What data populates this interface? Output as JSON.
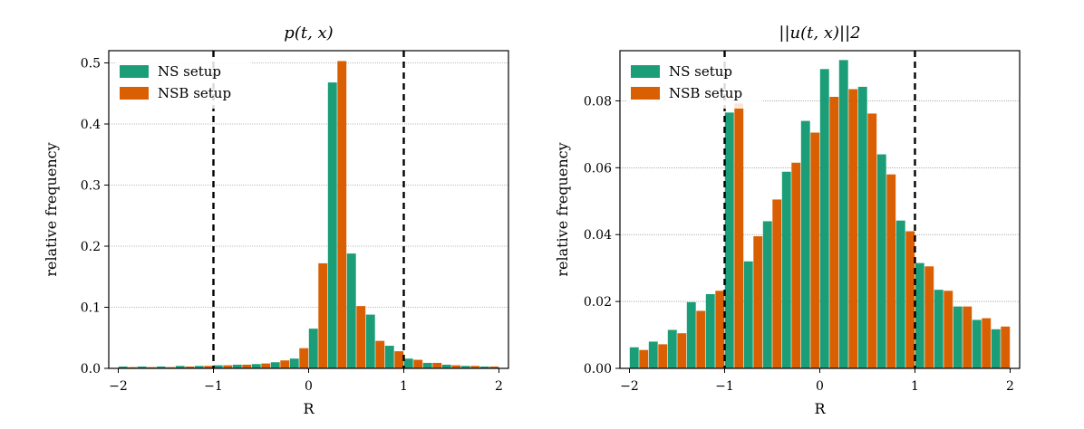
{
  "colors": {
    "ns": "#1b9e77",
    "nsb": "#d95f02",
    "grid": "#808080",
    "vline": "#000000"
  },
  "chart_data": [
    {
      "type": "bar",
      "title": "p(t, x)",
      "xlabel": "R",
      "ylabel": "relative frequency",
      "xlim": [
        -2.1,
        2.1
      ],
      "ylim": [
        0,
        0.52
      ],
      "xticks": [
        -2,
        -1,
        0,
        1,
        2
      ],
      "xtick_labels": [
        "−2",
        "−1",
        "0",
        "1",
        "2"
      ],
      "yticks": [
        0,
        0.1,
        0.2,
        0.3,
        0.4,
        0.5
      ],
      "ytick_labels": [
        "0.0",
        "0.1",
        "0.2",
        "0.3",
        "0.4",
        "0.5"
      ],
      "grid": "horizontal",
      "legend_position": "top-left",
      "bin_width": 0.2,
      "vlines": [
        -1,
        1
      ],
      "bin_centers": [
        -1.9,
        -1.7,
        -1.5,
        -1.3,
        -1.1,
        -0.9,
        -0.7,
        -0.5,
        -0.3,
        -0.1,
        0.1,
        0.3,
        0.5,
        0.7,
        0.9,
        1.1,
        1.3,
        1.5,
        1.7,
        1.9
      ],
      "series": [
        {
          "name": "NS setup",
          "color": "#1b9e77",
          "values": [
            0.003,
            0.003,
            0.003,
            0.004,
            0.004,
            0.005,
            0.006,
            0.007,
            0.01,
            0.016,
            0.065,
            0.468,
            0.188,
            0.088,
            0.037,
            0.016,
            0.009,
            0.006,
            0.004,
            0.003
          ]
        },
        {
          "name": "NSB setup",
          "color": "#d95f02",
          "values": [
            0.002,
            0.002,
            0.002,
            0.003,
            0.004,
            0.005,
            0.006,
            0.008,
            0.013,
            0.033,
            0.172,
            0.503,
            0.102,
            0.045,
            0.028,
            0.014,
            0.009,
            0.005,
            0.004,
            0.003
          ]
        }
      ]
    },
    {
      "type": "bar",
      "title": "||u(t, x)||2",
      "xlabel": "R",
      "ylabel": "relative frequency",
      "xlim": [
        -2.1,
        2.1
      ],
      "ylim": [
        0,
        0.095
      ],
      "xticks": [
        -2,
        -1,
        0,
        1,
        2
      ],
      "xtick_labels": [
        "−2",
        "−1",
        "0",
        "1",
        "2"
      ],
      "yticks": [
        0,
        0.02,
        0.04,
        0.06,
        0.08
      ],
      "ytick_labels": [
        "0.00",
        "0.02",
        "0.04",
        "0.06",
        "0.08"
      ],
      "grid": "horizontal",
      "legend_position": "top-left",
      "bin_width": 0.2,
      "vlines": [
        -1,
        1
      ],
      "bin_centers": [
        -1.9,
        -1.7,
        -1.5,
        -1.3,
        -1.1,
        -0.9,
        -0.7,
        -0.5,
        -0.3,
        -0.1,
        0.1,
        0.3,
        0.5,
        0.7,
        0.9,
        1.1,
        1.3,
        1.5,
        1.7,
        1.9
      ],
      "series": [
        {
          "name": "NS setup",
          "color": "#1b9e77",
          "values": [
            0.0063,
            0.008,
            0.0115,
            0.0198,
            0.0222,
            0.0765,
            0.032,
            0.044,
            0.0588,
            0.074,
            0.0895,
            0.0922,
            0.0842,
            0.064,
            0.0442,
            0.0315,
            0.0235,
            0.0185,
            0.0145,
            0.0117
          ]
        },
        {
          "name": "NSB setup",
          "color": "#d95f02",
          "values": [
            0.0055,
            0.0072,
            0.0105,
            0.0172,
            0.0232,
            0.0792,
            0.0395,
            0.0505,
            0.0615,
            0.0705,
            0.0812,
            0.0835,
            0.0762,
            0.058,
            0.041,
            0.0305,
            0.0232,
            0.0185,
            0.015,
            0.0125
          ]
        }
      ]
    }
  ]
}
